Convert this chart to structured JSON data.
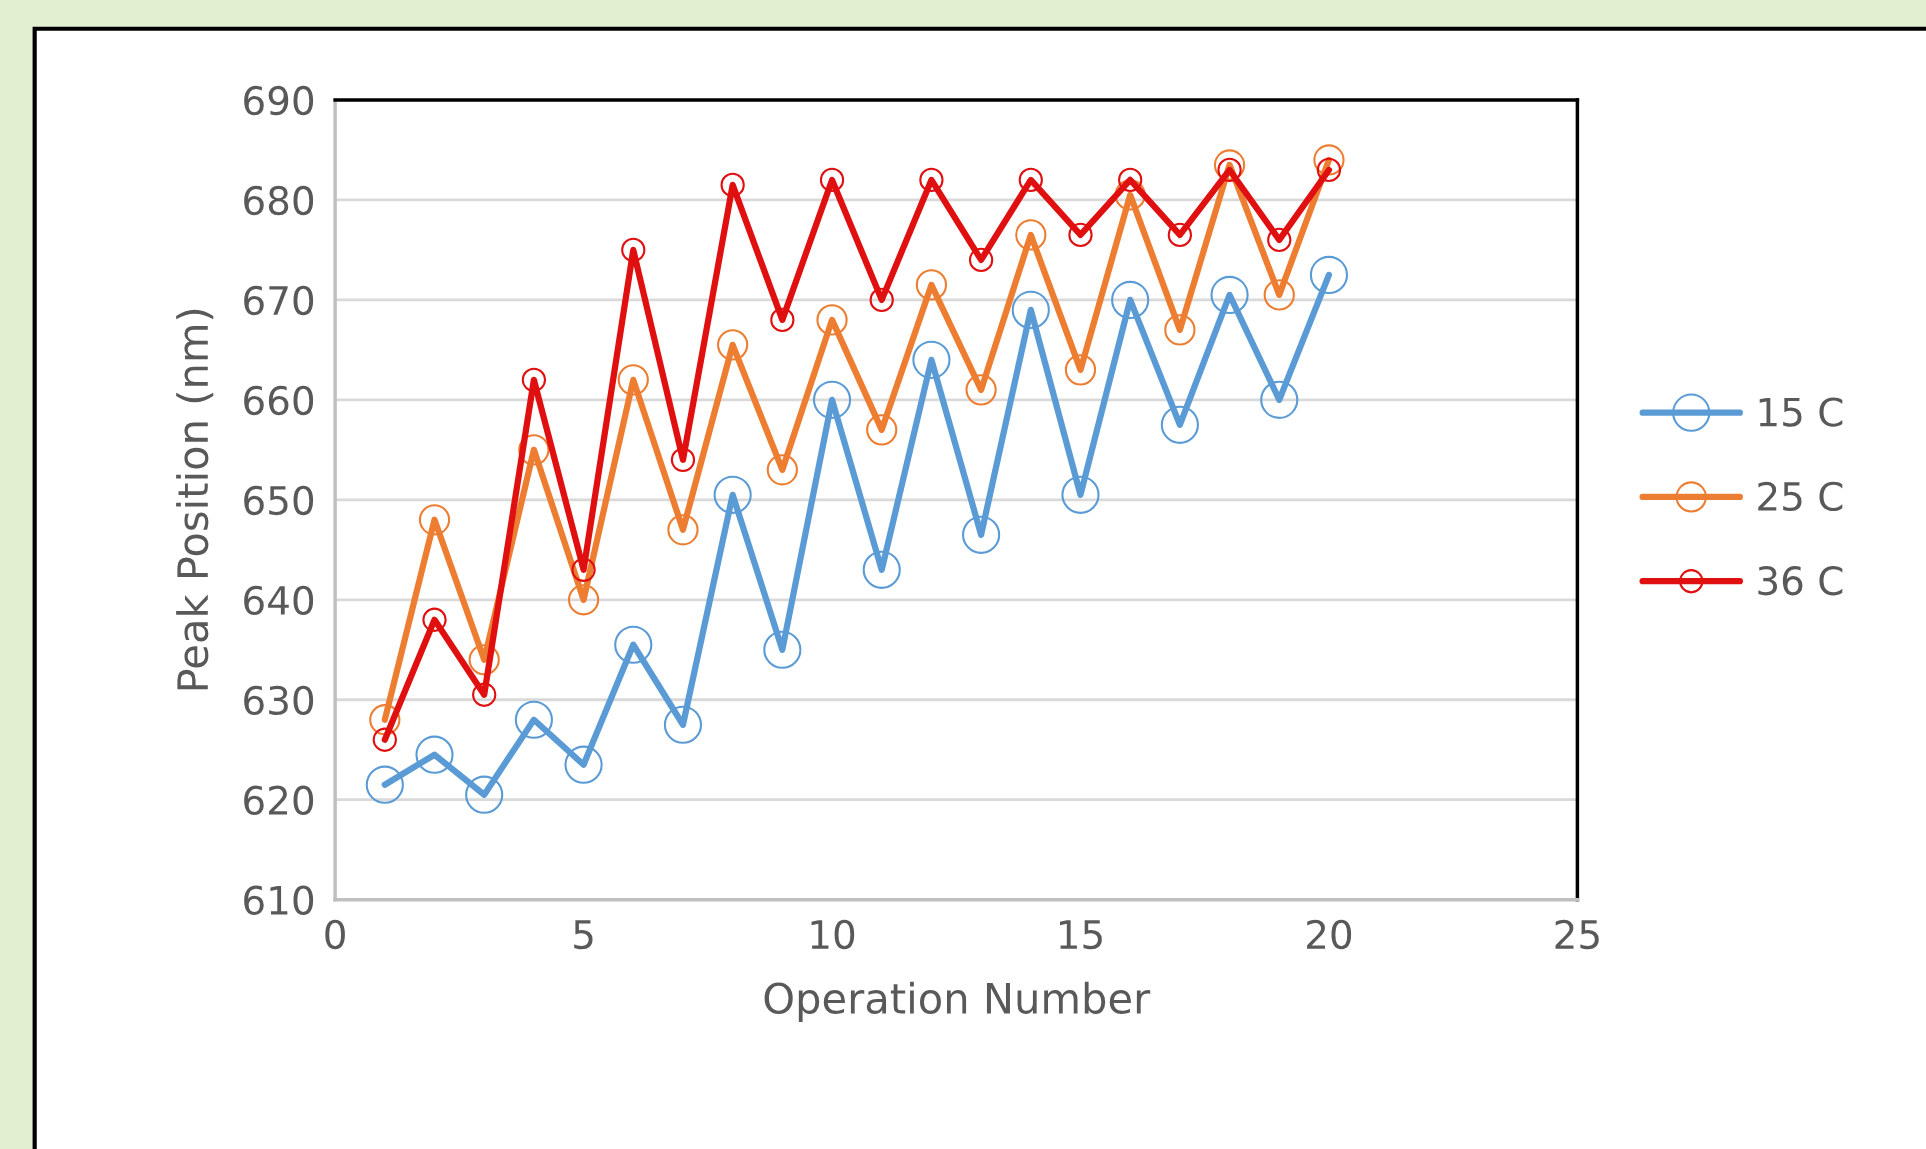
{
  "chart_data": {
    "type": "line",
    "xlabel": "Operation Number",
    "ylabel": "Peak Position (nm)",
    "x": [
      1,
      2,
      3,
      4,
      5,
      6,
      7,
      8,
      9,
      10,
      11,
      12,
      13,
      14,
      15,
      16,
      17,
      18,
      19,
      20
    ],
    "series": [
      {
        "name": "15 C",
        "color": "#5b9bd5",
        "values": [
          621.5,
          624.5,
          620.5,
          628,
          623.5,
          635.5,
          627.5,
          650.5,
          635,
          660,
          643,
          664,
          646.5,
          669,
          650.5,
          670,
          657.5,
          670.5,
          660,
          672.5
        ]
      },
      {
        "name": "25 C",
        "color": "#ed7d31",
        "values": [
          628,
          648,
          634,
          655,
          640,
          662,
          647,
          665.5,
          653,
          668,
          657,
          671.5,
          661,
          676.5,
          663,
          680.5,
          667,
          683.5,
          670.5,
          684
        ]
      },
      {
        "name": "36 C",
        "color": "#e01010",
        "values": [
          626,
          638,
          630.5,
          662,
          643,
          675,
          654,
          681.5,
          668,
          682,
          670,
          682,
          674,
          682,
          676.5,
          682,
          676.5,
          683,
          676,
          683
        ]
      }
    ],
    "xlim": [
      0,
      25
    ],
    "xticks": [
      0,
      5,
      10,
      15,
      20,
      25
    ],
    "ylim": [
      610,
      690
    ],
    "yticks": [
      610,
      620,
      630,
      640,
      650,
      660,
      670,
      680,
      690
    ],
    "grid": "y",
    "legend": "right",
    "marker": "circle",
    "line_style": "solid"
  }
}
